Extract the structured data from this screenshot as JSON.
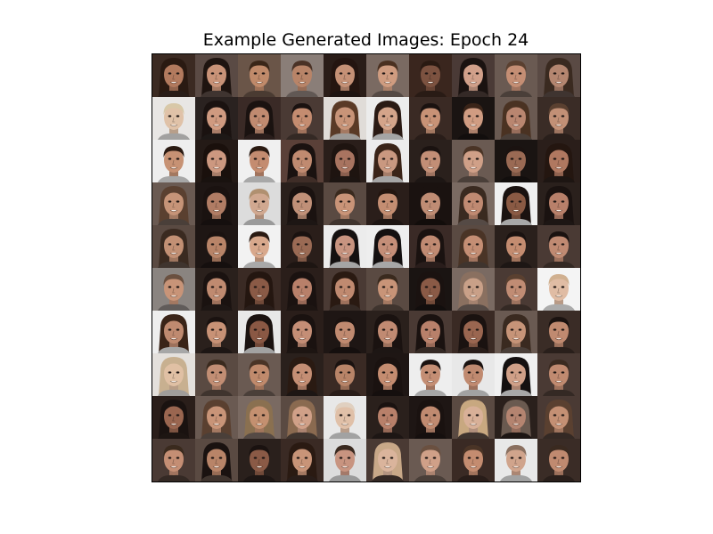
{
  "figure": {
    "title": "Example Generated Images: Epoch 24"
  },
  "image_grid": {
    "rows": 10,
    "cols": 10,
    "tiles": [
      {
        "bg": "#3b2a22",
        "skin": "#b27a5e",
        "hair": "#2a1a12",
        "style": "long"
      },
      {
        "bg": "#5a4a44",
        "skin": "#c99378",
        "hair": "#1e1410",
        "style": "long"
      },
      {
        "bg": "#6a5548",
        "skin": "#c08a6a",
        "hair": "#3a2618",
        "style": "short"
      },
      {
        "bg": "#8a7e78",
        "skin": "#b88468",
        "hair": "#4a3226",
        "style": "short"
      },
      {
        "bg": "#2a1d18",
        "skin": "#c59176",
        "hair": "#241510",
        "style": "long"
      },
      {
        "bg": "#7a6a62",
        "skin": "#cf9c80",
        "hair": "#4a3020",
        "style": "short"
      },
      {
        "bg": "#3a261e",
        "skin": "#7c5240",
        "hair": "#2a1a12",
        "style": "short"
      },
      {
        "bg": "#4a3a36",
        "skin": "#d1a08a",
        "hair": "#1a1210",
        "style": "long"
      },
      {
        "bg": "#6a5a52",
        "skin": "#c48e74",
        "hair": "#5a4030",
        "style": "short"
      },
      {
        "bg": "#5a4a44",
        "skin": "#b48670",
        "hair": "#3a2a20",
        "style": "long"
      },
      {
        "bg": "#e8e6e4",
        "skin": "#e0c2a8",
        "hair": "#d8c8a8",
        "style": "short"
      },
      {
        "bg": "#2a2220",
        "skin": "#cf9a80",
        "hair": "#1a1210",
        "style": "long"
      },
      {
        "bg": "#3a2a26",
        "skin": "#c08a70",
        "hair": "#1a1210",
        "style": "long"
      },
      {
        "bg": "#4a3a34",
        "skin": "#c48c70",
        "hair": "#1a1210",
        "style": "short"
      },
      {
        "bg": "#e0dcd8",
        "skin": "#c89478",
        "hair": "#5a3a26",
        "style": "long"
      },
      {
        "bg": "#ececec",
        "skin": "#d4a48a",
        "hair": "#2a1a14",
        "style": "long"
      },
      {
        "bg": "#3a2a24",
        "skin": "#c89276",
        "hair": "#1a1210",
        "style": "short"
      },
      {
        "bg": "#1a1412",
        "skin": "#d09c82",
        "hair": "#3a2418",
        "style": "short"
      },
      {
        "bg": "#6a5a52",
        "skin": "#b98670",
        "hair": "#4a3222",
        "style": "long"
      },
      {
        "bg": "#3a2c26",
        "skin": "#c29076",
        "hair": "#5a4030",
        "style": "short"
      },
      {
        "bg": "#eeeeee",
        "skin": "#c79274",
        "hair": "#2a1a12",
        "style": "short"
      },
      {
        "bg": "#241a16",
        "skin": "#cc9880",
        "hair": "#1a100c",
        "style": "long"
      },
      {
        "bg": "#f0f0f0",
        "skin": "#c48c70",
        "hair": "#2a1a12",
        "style": "short"
      },
      {
        "bg": "#5a4038",
        "skin": "#c08a70",
        "hair": "#1a1210",
        "style": "long"
      },
      {
        "bg": "#2a1e1a",
        "skin": "#a87460",
        "hair": "#1e1410",
        "style": "long"
      },
      {
        "bg": "#ececec",
        "skin": "#c99880",
        "hair": "#3a2418",
        "style": "long"
      },
      {
        "bg": "#2a201c",
        "skin": "#c28e76",
        "hair": "#1a1210",
        "style": "short"
      },
      {
        "bg": "#6a5a52",
        "skin": "#d0a088",
        "hair": "#4a3426",
        "style": "short"
      },
      {
        "bg": "#1a1412",
        "skin": "#9a6a54",
        "hair": "#1a1210",
        "style": "short"
      },
      {
        "bg": "#2a1e1a",
        "skin": "#b07860",
        "hair": "#241610",
        "style": "long"
      },
      {
        "bg": "#6a5a52",
        "skin": "#c69478",
        "hair": "#5a4030",
        "style": "long"
      },
      {
        "bg": "#1e1614",
        "skin": "#b07c64",
        "hair": "#1a1210",
        "style": "long"
      },
      {
        "bg": "#dcdcdc",
        "skin": "#d0a890",
        "hair": "#b09070",
        "style": "short"
      },
      {
        "bg": "#2a201c",
        "skin": "#c09078",
        "hair": "#1a1210",
        "style": "long"
      },
      {
        "bg": "#5a4a42",
        "skin": "#c99478",
        "hair": "#3a2a1e",
        "style": "short"
      },
      {
        "bg": "#2a1e1a",
        "skin": "#c48e72",
        "hair": "#241610",
        "style": "short"
      },
      {
        "bg": "#1a1210",
        "skin": "#bf8c74",
        "hair": "#1a1210",
        "style": "long"
      },
      {
        "bg": "#7a6a62",
        "skin": "#c08a72",
        "hair": "#3a2a20",
        "style": "long"
      },
      {
        "bg": "#f0f0f0",
        "skin": "#8a5a44",
        "hair": "#1a1210",
        "style": "long"
      },
      {
        "bg": "#2a201c",
        "skin": "#b8806a",
        "hair": "#1a1210",
        "style": "long"
      },
      {
        "bg": "#5a4a42",
        "skin": "#c29074",
        "hair": "#3a2a20",
        "style": "long"
      },
      {
        "bg": "#1e1614",
        "skin": "#b88468",
        "hair": "#1a1210",
        "style": "short"
      },
      {
        "bg": "#f2f2f2",
        "skin": "#d8a88c",
        "hair": "#2a1a12",
        "style": "short"
      },
      {
        "bg": "#2a1e1a",
        "skin": "#9a6a54",
        "hair": "#1a1210",
        "style": "short"
      },
      {
        "bg": "#ececec",
        "skin": "#c89480",
        "hair": "#141010",
        "style": "long"
      },
      {
        "bg": "#eeeeee",
        "skin": "#c48e78",
        "hair": "#141010",
        "style": "long"
      },
      {
        "bg": "#3a2a26",
        "skin": "#c08a72",
        "hair": "#1a1210",
        "style": "long"
      },
      {
        "bg": "#5a4a42",
        "skin": "#c48e74",
        "hair": "#4a3426",
        "style": "long"
      },
      {
        "bg": "#2a201c",
        "skin": "#c48c70",
        "hair": "#1a1210",
        "style": "short"
      },
      {
        "bg": "#4a3a34",
        "skin": "#c08a72",
        "hair": "#1a1210",
        "style": "short"
      },
      {
        "bg": "#8a8480",
        "skin": "#c89478",
        "hair": "#6a5040",
        "style": "short"
      },
      {
        "bg": "#2a201c",
        "skin": "#bf8a70",
        "hair": "#1a1210",
        "style": "long"
      },
      {
        "bg": "#3a2a24",
        "skin": "#8a5a46",
        "hair": "#241610",
        "style": "long"
      },
      {
        "bg": "#2a1e1a",
        "skin": "#b8806a",
        "hair": "#1a1210",
        "style": "long"
      },
      {
        "bg": "#4a3a34",
        "skin": "#c08a70",
        "hair": "#2a1a12",
        "style": "long"
      },
      {
        "bg": "#5a4a42",
        "skin": "#c89478",
        "hair": "#3a2a1e",
        "style": "short"
      },
      {
        "bg": "#1a1412",
        "skin": "#8a5a46",
        "hair": "#1a1210",
        "style": "long"
      },
      {
        "bg": "#7a6a62",
        "skin": "#c9a088",
        "hair": "#8a7060",
        "style": "long"
      },
      {
        "bg": "#4a3a34",
        "skin": "#c08c74",
        "hair": "#5a4030",
        "style": "short"
      },
      {
        "bg": "#f4f4f4",
        "skin": "#e0bca4",
        "hair": "#d0b090",
        "style": "short"
      },
      {
        "bg": "#eeeeee",
        "skin": "#bf8a70",
        "hair": "#3a2418",
        "style": "long"
      },
      {
        "bg": "#2a201c",
        "skin": "#c89276",
        "hair": "#1a1210",
        "style": "short"
      },
      {
        "bg": "#e8e8e8",
        "skin": "#8a5844",
        "hair": "#1a1210",
        "style": "long"
      },
      {
        "bg": "#2a1e1a",
        "skin": "#c48e76",
        "hair": "#1a1210",
        "style": "long"
      },
      {
        "bg": "#1e1614",
        "skin": "#c08a70",
        "hair": "#1a1210",
        "style": "short"
      },
      {
        "bg": "#2a201c",
        "skin": "#c08a72",
        "hair": "#1a1210",
        "style": "long"
      },
      {
        "bg": "#4a3a34",
        "skin": "#b8806a",
        "hair": "#1a1210",
        "style": "long"
      },
      {
        "bg": "#3a2a24",
        "skin": "#9a6650",
        "hair": "#1a1210",
        "style": "long"
      },
      {
        "bg": "#6a5a52",
        "skin": "#c69478",
        "hair": "#3a2a20",
        "style": "long"
      },
      {
        "bg": "#3a2c26",
        "skin": "#c08a70",
        "hair": "#1a1210",
        "style": "short"
      },
      {
        "bg": "#e4e0dc",
        "skin": "#e0c0a4",
        "hair": "#c8b090",
        "style": "long"
      },
      {
        "bg": "#5a4a42",
        "skin": "#c28e74",
        "hair": "#3a2a1e",
        "style": "short"
      },
      {
        "bg": "#6a5a52",
        "skin": "#c08a6c",
        "hair": "#4a3426",
        "style": "short"
      },
      {
        "bg": "#2a201c",
        "skin": "#c48e74",
        "hair": "#2a1a12",
        "style": "long"
      },
      {
        "bg": "#3a2a24",
        "skin": "#b88468",
        "hair": "#1a1210",
        "style": "short"
      },
      {
        "bg": "#1e1614",
        "skin": "#c48c70",
        "hair": "#1a1210",
        "style": "long"
      },
      {
        "bg": "#eeeeee",
        "skin": "#c48e74",
        "hair": "#1a1210",
        "style": "short"
      },
      {
        "bg": "#e8e8e8",
        "skin": "#c08a70",
        "hair": "#1a1210",
        "style": "short"
      },
      {
        "bg": "#f0f0f0",
        "skin": "#d0a088",
        "hair": "#141010",
        "style": "long"
      },
      {
        "bg": "#4a3a34",
        "skin": "#c08a70",
        "hair": "#3a2a20",
        "style": "short"
      },
      {
        "bg": "#2a1e1a",
        "skin": "#9a6650",
        "hair": "#1a1210",
        "style": "long"
      },
      {
        "bg": "#6a5a52",
        "skin": "#c89478",
        "hair": "#5a4030",
        "style": "long"
      },
      {
        "bg": "#7a6a62",
        "skin": "#c49070",
        "hair": "#8a7050",
        "style": "long"
      },
      {
        "bg": "#5a4a42",
        "skin": "#d0a088",
        "hair": "#8a6a50",
        "style": "long"
      },
      {
        "bg": "#e8e8e8",
        "skin": "#e0c0a8",
        "hair": "#e0d0c0",
        "style": "short"
      },
      {
        "bg": "#2a201c",
        "skin": "#b8806a",
        "hair": "#1a1210",
        "style": "short"
      },
      {
        "bg": "#1e1614",
        "skin": "#c08a70",
        "hair": "#1a1210",
        "style": "long"
      },
      {
        "bg": "#5a4a42",
        "skin": "#d8b098",
        "hair": "#c8a880",
        "style": "long"
      },
      {
        "bg": "#2a201c",
        "skin": "#b48470",
        "hair": "#6a5a50",
        "style": "long"
      },
      {
        "bg": "#4a3a34",
        "skin": "#c49074",
        "hair": "#5a4030",
        "style": "long"
      },
      {
        "bg": "#4a3a34",
        "skin": "#c48e74",
        "hair": "#3a2a1e",
        "style": "short"
      },
      {
        "bg": "#5a4a42",
        "skin": "#b88468",
        "hair": "#1a1210",
        "style": "long"
      },
      {
        "bg": "#2a201c",
        "skin": "#8a5a46",
        "hair": "#1a1210",
        "style": "short"
      },
      {
        "bg": "#3a2a24",
        "skin": "#c89478",
        "hair": "#2a1a12",
        "style": "long"
      },
      {
        "bg": "#dcdcdc",
        "skin": "#c89480",
        "hair": "#3a2a20",
        "style": "short"
      },
      {
        "bg": "#4a3a34",
        "skin": "#dab49c",
        "hair": "#c8a888",
        "style": "long"
      },
      {
        "bg": "#6a5a52",
        "skin": "#d0a088",
        "hair": "#6a5040",
        "style": "short"
      },
      {
        "bg": "#3a2a24",
        "skin": "#c48c70",
        "hair": "#4a3426",
        "style": "short"
      },
      {
        "bg": "#e8e8e8",
        "skin": "#d0a48c",
        "hair": "#8a7060",
        "style": "short"
      },
      {
        "bg": "#3a2c26",
        "skin": "#c08a70",
        "hair": "#3a2a20",
        "style": "short"
      }
    ]
  }
}
